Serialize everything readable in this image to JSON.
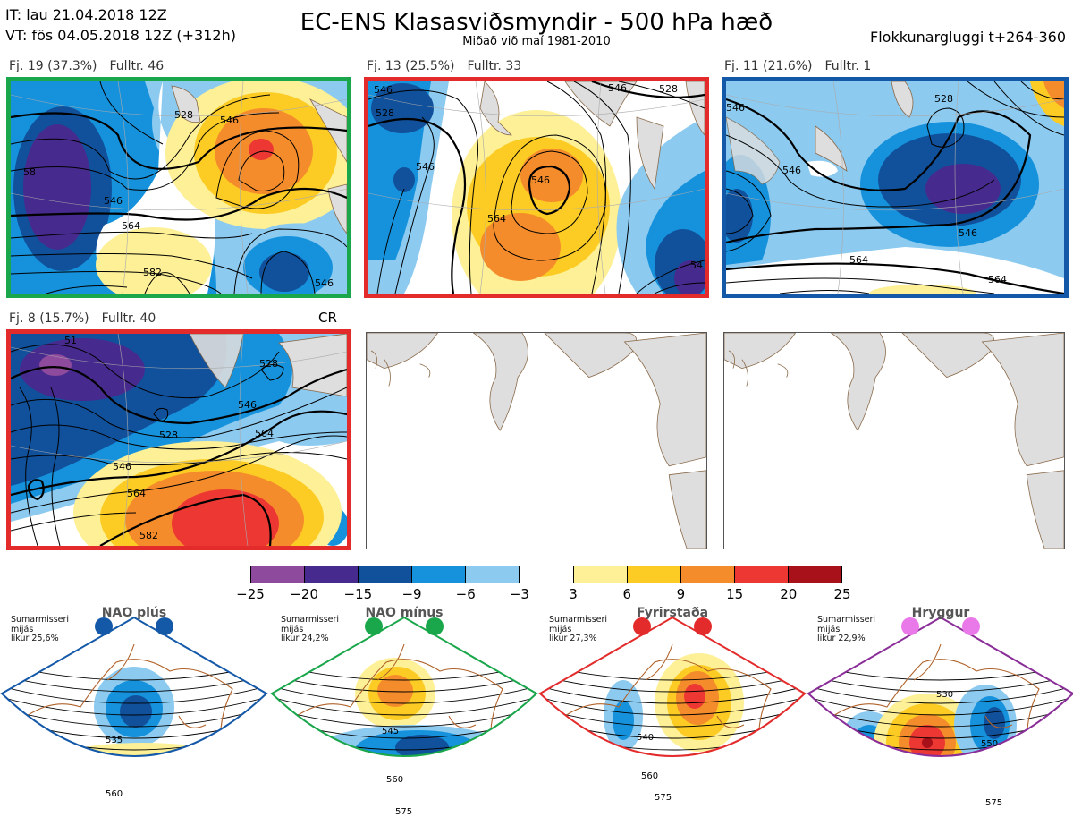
{
  "header": {
    "it_line": "IT: lau 21.04.2018 12Z",
    "vt_line": "VT: fös 04.05.2018 12Z  (+312h)",
    "title": "EC-ENS Klasasviðsmyndir - 500 hPa hæð",
    "subtitle": "Miðað við maí 1981-2010",
    "window": "Flokkunargluggi t+264-360"
  },
  "colors": {
    "green": "#1aa64a",
    "red": "#e32b2b",
    "blue": "#1458a8",
    "purple": "#8a2d98",
    "magenta": "#e979e9",
    "land": "#dedede",
    "coast": "#8a6a4a"
  },
  "clusters": [
    {
      "cluster_label": "Fj. 19 (37.3%)",
      "members_label": "Fulltr. 46",
      "border_color": "#1aa64a",
      "contour_labels": [
        "528",
        "546",
        "546",
        "564",
        "582",
        "546",
        "58"
      ]
    },
    {
      "cluster_label": "Fj. 13 (25.5%)",
      "members_label": "Fulltr. 33",
      "border_color": "#e32b2b",
      "contour_labels": [
        "528",
        "546",
        "546",
        "564",
        "546",
        "546",
        "528",
        "54"
      ]
    },
    {
      "cluster_label": "Fj. 11 (21.6%)",
      "members_label": "Fulltr. 1",
      "border_color": "#1458a8",
      "contour_labels": [
        "528",
        "546",
        "546",
        "564",
        "564",
        "546"
      ]
    },
    {
      "cluster_label": "Fj. 8 (15.7%)",
      "members_label": "Fulltr. 40",
      "border_color": "#e32b2b",
      "extra_label": "CR",
      "contour_labels": [
        "528",
        "546",
        "546",
        "564",
        "564",
        "582",
        "528",
        "51"
      ]
    }
  ],
  "colorbar": {
    "colors": [
      "#8e4a9c",
      "#472a8e",
      "#11519c",
      "#1692dc",
      "#8ccaf0",
      "#ffffff",
      "#fdf096",
      "#fccc24",
      "#f58c2c",
      "#ec3732",
      "#a8101a"
    ],
    "ticks": [
      "−25",
      "−20",
      "−15",
      "−9",
      "−6",
      "−3",
      "3",
      "6",
      "9",
      "15",
      "20",
      "25"
    ]
  },
  "regimes": [
    {
      "name": "NAO plús",
      "info_line1": "Sumarmisseri",
      "info_line2": "mijás",
      "info_line3": "líkur 25,6%",
      "color": "#1458a8",
      "dot_color": "#1458a8",
      "contour_labels": [
        "535",
        "560"
      ]
    },
    {
      "name": "NAO mínus",
      "info_line1": "Sumarmisseri",
      "info_line2": "mijás",
      "info_line3": "líkur 24,2%",
      "color": "#1aa64a",
      "dot_color": "#1aa64a",
      "contour_labels": [
        "545",
        "560",
        "575"
      ]
    },
    {
      "name": "Fyrirstaða",
      "info_line1": "Sumarmisseri",
      "info_line2": "mijás",
      "info_line3": "líkur 27,3%",
      "color": "#e32b2b",
      "dot_color": "#e32b2b",
      "contour_labels": [
        "540",
        "560",
        "575"
      ]
    },
    {
      "name": "Hryggur",
      "info_line1": "Sumarmisseri",
      "info_line2": "mijás",
      "info_line3": "líkur 22,9%",
      "color": "#8a2d98",
      "dot_color": "#e979e9",
      "contour_labels": [
        "530",
        "550",
        "575"
      ]
    }
  ]
}
